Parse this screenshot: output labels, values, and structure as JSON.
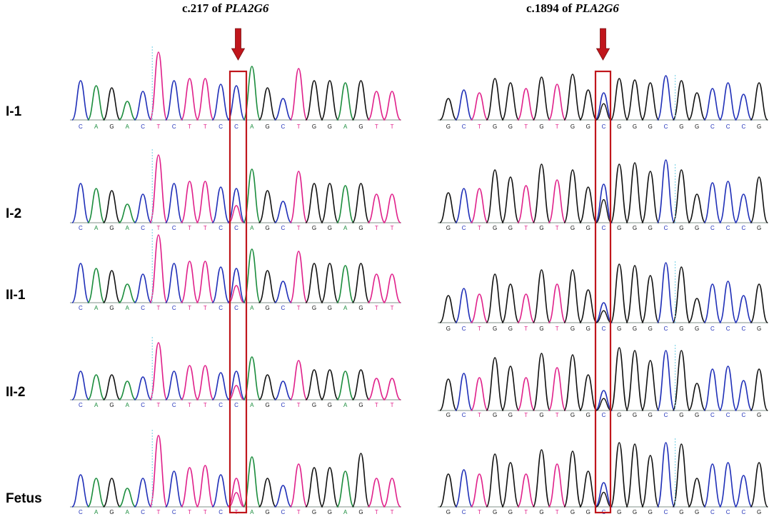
{
  "columns": [
    {
      "title_prefix": "c.217 of",
      "title_gene": "PLA2G6",
      "bases": [
        "C",
        "A",
        "G",
        "A",
        "C",
        "T",
        "C",
        "T",
        "T",
        "C",
        "C",
        "A",
        "G",
        "C",
        "T",
        "G",
        "G",
        "A",
        "G",
        "T",
        "T"
      ],
      "fetus_bases": [
        "C",
        "A",
        "G",
        "A",
        "C",
        "T",
        "C",
        "T",
        "T",
        "C",
        "T",
        "A",
        "G",
        "C",
        "T",
        "G",
        "G",
        "A",
        "G",
        "T",
        "T"
      ],
      "highlight_base_index": 10
    },
    {
      "title_prefix": "c.1894 of",
      "title_gene": "PLA2G6",
      "bases": [
        "G",
        "C",
        "T",
        "G",
        "G",
        "T",
        "G",
        "T",
        "G",
        "G",
        "C",
        "G",
        "G",
        "G",
        "C",
        "G",
        "G",
        "C",
        "C",
        "C",
        "G"
      ],
      "highlight_base_index": 10
    }
  ],
  "rows": [
    {
      "label": "I-1"
    },
    {
      "label": "I-2"
    },
    {
      "label": "II-1"
    },
    {
      "label": "II-2"
    },
    {
      "label": "Fetus"
    }
  ],
  "base_colors": {
    "A": "#1a8c3c",
    "C": "#1f2fb8",
    "G": "#111111",
    "T": "#e0208a"
  },
  "highlight_color": "#c0161c",
  "arrow_color": "#c0161c",
  "baseline_color": "#9aa6a0",
  "marker_line_color": "#6fd0e6"
}
